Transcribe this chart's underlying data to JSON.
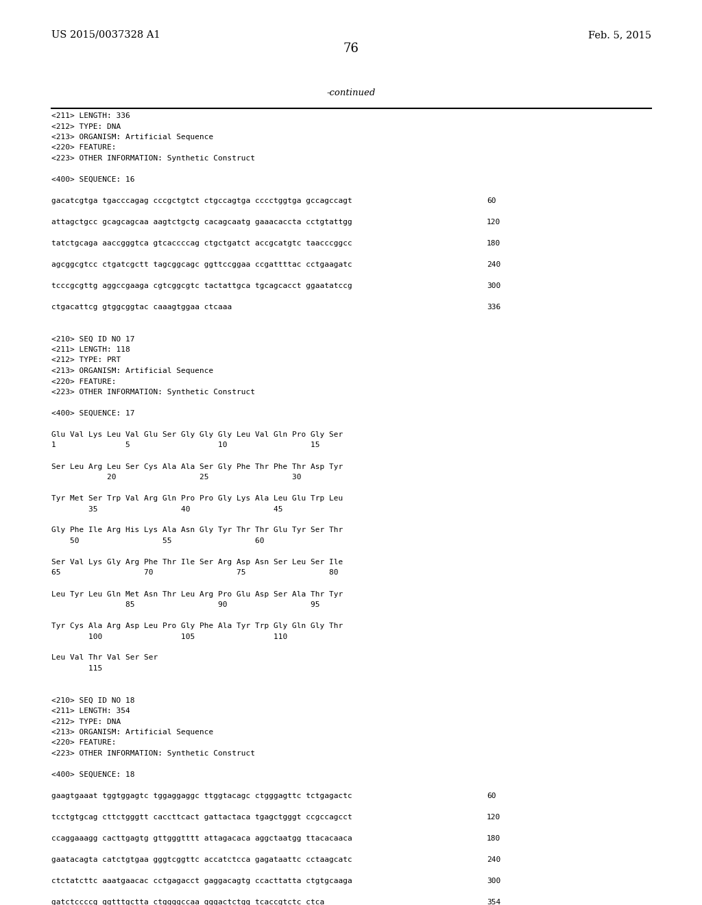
{
  "header_left": "US 2015/0037328 A1",
  "header_right": "Feb. 5, 2015",
  "page_number": "76",
  "continued_text": "-continued",
  "background_color": "#ffffff",
  "text_color": "#000000",
  "body_lines": [
    {
      "text": "<211> LENGTH: 336",
      "seq": false
    },
    {
      "text": "<212> TYPE: DNA",
      "seq": false
    },
    {
      "text": "<213> ORGANISM: Artificial Sequence",
      "seq": false
    },
    {
      "text": "<220> FEATURE:",
      "seq": false
    },
    {
      "text": "<223> OTHER INFORMATION: Synthetic Construct",
      "seq": false
    },
    {
      "text": "",
      "seq": false
    },
    {
      "text": "<400> SEQUENCE: 16",
      "seq": false
    },
    {
      "text": "",
      "seq": false
    },
    {
      "text": "gacatcgtga tgacccagag cccgctgtct ctgccagtga cccctggtga gccagccagt",
      "seq": true,
      "num": "60"
    },
    {
      "text": "",
      "seq": false
    },
    {
      "text": "attagctgcc gcagcagcaa aagtctgctg cacagcaatg gaaacaccta cctgtattgg",
      "seq": true,
      "num": "120"
    },
    {
      "text": "",
      "seq": false
    },
    {
      "text": "tatctgcaga aaccgggtca gtcaccccag ctgctgatct accgcatgtc taacccggcc",
      "seq": true,
      "num": "180"
    },
    {
      "text": "",
      "seq": false
    },
    {
      "text": "agcggcgtcc ctgatcgctt tagcggcagc ggttccggaa ccgattttac cctgaagatc",
      "seq": true,
      "num": "240"
    },
    {
      "text": "",
      "seq": false
    },
    {
      "text": "tcccgcgttg aggccgaaga cgtcggcgtc tactattgca tgcagcacct ggaatatccg",
      "seq": true,
      "num": "300"
    },
    {
      "text": "",
      "seq": false
    },
    {
      "text": "ctgacattcg gtggcggtac caaagtggaa ctcaaa",
      "seq": true,
      "num": "336"
    },
    {
      "text": "",
      "seq": false
    },
    {
      "text": "",
      "seq": false
    },
    {
      "text": "<210> SEQ ID NO 17",
      "seq": false
    },
    {
      "text": "<211> LENGTH: 118",
      "seq": false
    },
    {
      "text": "<212> TYPE: PRT",
      "seq": false
    },
    {
      "text": "<213> ORGANISM: Artificial Sequence",
      "seq": false
    },
    {
      "text": "<220> FEATURE:",
      "seq": false
    },
    {
      "text": "<223> OTHER INFORMATION: Synthetic Construct",
      "seq": false
    },
    {
      "text": "",
      "seq": false
    },
    {
      "text": "<400> SEQUENCE: 17",
      "seq": false
    },
    {
      "text": "",
      "seq": false
    },
    {
      "text": "Glu Val Lys Leu Val Glu Ser Gly Gly Gly Leu Val Gln Pro Gly Ser",
      "seq": false
    },
    {
      "text": "1               5                   10                  15",
      "seq": false
    },
    {
      "text": "",
      "seq": false
    },
    {
      "text": "Ser Leu Arg Leu Ser Cys Ala Ala Ser Gly Phe Thr Phe Thr Asp Tyr",
      "seq": false
    },
    {
      "text": "            20                  25                  30",
      "seq": false
    },
    {
      "text": "",
      "seq": false
    },
    {
      "text": "Tyr Met Ser Trp Val Arg Gln Pro Pro Gly Lys Ala Leu Glu Trp Leu",
      "seq": false
    },
    {
      "text": "        35                  40                  45",
      "seq": false
    },
    {
      "text": "",
      "seq": false
    },
    {
      "text": "Gly Phe Ile Arg His Lys Ala Asn Gly Tyr Thr Thr Glu Tyr Ser Thr",
      "seq": false
    },
    {
      "text": "    50                  55                  60",
      "seq": false
    },
    {
      "text": "",
      "seq": false
    },
    {
      "text": "Ser Val Lys Gly Arg Phe Thr Ile Ser Arg Asp Asn Ser Leu Ser Ile",
      "seq": false
    },
    {
      "text": "65                  70                  75                  80",
      "seq": false
    },
    {
      "text": "",
      "seq": false
    },
    {
      "text": "Leu Tyr Leu Gln Met Asn Thr Leu Arg Pro Glu Asp Ser Ala Thr Tyr",
      "seq": false
    },
    {
      "text": "                85                  90                  95",
      "seq": false
    },
    {
      "text": "",
      "seq": false
    },
    {
      "text": "Tyr Cys Ala Arg Asp Leu Pro Gly Phe Ala Tyr Trp Gly Gln Gly Thr",
      "seq": false
    },
    {
      "text": "        100                 105                 110",
      "seq": false
    },
    {
      "text": "",
      "seq": false
    },
    {
      "text": "Leu Val Thr Val Ser Ser",
      "seq": false
    },
    {
      "text": "        115",
      "seq": false
    },
    {
      "text": "",
      "seq": false
    },
    {
      "text": "",
      "seq": false
    },
    {
      "text": "<210> SEQ ID NO 18",
      "seq": false
    },
    {
      "text": "<211> LENGTH: 354",
      "seq": false
    },
    {
      "text": "<212> TYPE: DNA",
      "seq": false
    },
    {
      "text": "<213> ORGANISM: Artificial Sequence",
      "seq": false
    },
    {
      "text": "<220> FEATURE:",
      "seq": false
    },
    {
      "text": "<223> OTHER INFORMATION: Synthetic Construct",
      "seq": false
    },
    {
      "text": "",
      "seq": false
    },
    {
      "text": "<400> SEQUENCE: 18",
      "seq": false
    },
    {
      "text": "",
      "seq": false
    },
    {
      "text": "gaagtgaaat tggtggagtc tggaggaggc ttggtacagc ctgggagttc tctgagactc",
      "seq": true,
      "num": "60"
    },
    {
      "text": "",
      "seq": false
    },
    {
      "text": "tcctgtgcag cttctgggtt caccttcact gattactaca tgagctgggt ccgccagcct",
      "seq": true,
      "num": "120"
    },
    {
      "text": "",
      "seq": false
    },
    {
      "text": "ccaggaaagg cacttgagtg gttgggtttt attagacaca aggctaatgg ttacacaaca",
      "seq": true,
      "num": "180"
    },
    {
      "text": "",
      "seq": false
    },
    {
      "text": "gaatacagta catctgtgaa gggtcggttc accatctcca gagataattc cctaagcatc",
      "seq": true,
      "num": "240"
    },
    {
      "text": "",
      "seq": false
    },
    {
      "text": "ctctatcttc aaatgaacac cctgagacct gaggacagtg ccacttatta ctgtgcaaga",
      "seq": true,
      "num": "300"
    },
    {
      "text": "",
      "seq": false
    },
    {
      "text": "gatctccccg ggtttgctta ctggggccaa gggactctgg tcaccgtctc ctca",
      "seq": true,
      "num": "354"
    }
  ]
}
